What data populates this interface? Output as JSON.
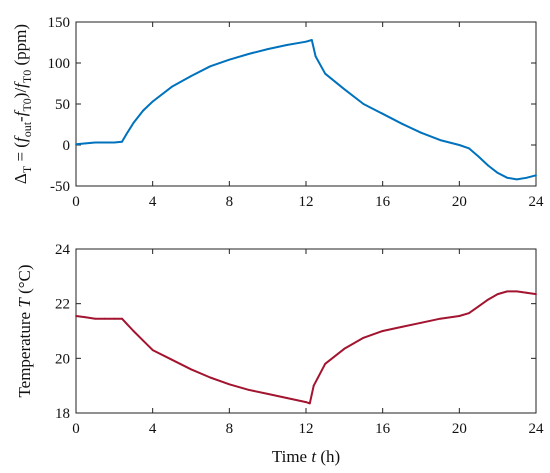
{
  "chart_data": [
    {
      "type": "line",
      "ylabel": {
        "base": "Δ",
        "base_sub": "T",
        "mid1": " = (",
        "f1": "f",
        "f1_sub": "out",
        "minus": "-",
        "f2": "f",
        "f2_sub": "T0",
        "close": ")/",
        "f3": "f",
        "f3_sub": "T0",
        "unit": " (ppm)"
      },
      "xlim": [
        0,
        24
      ],
      "ylim": [
        -50,
        150
      ],
      "x_ticks": [
        "0",
        "4",
        "8",
        "12",
        "16",
        "20",
        "24"
      ],
      "y_ticks": [
        "-50",
        "0",
        "50",
        "100",
        "150"
      ],
      "series": [
        {
          "color": "#0072BD",
          "x": [
            0,
            0.5,
            1.0,
            1.5,
            2.0,
            2.4,
            2.6,
            3.0,
            3.5,
            4.0,
            5.0,
            6.0,
            7.0,
            8.0,
            9.0,
            10.0,
            11.0,
            12.0,
            12.3,
            12.5,
            13.0,
            14.0,
            15.0,
            16.0,
            17.0,
            18.0,
            19.0,
            20.0,
            20.5,
            21.0,
            21.5,
            22.0,
            22.5,
            23.0,
            23.5,
            24.0
          ],
          "y": [
            1,
            2,
            3,
            3,
            3,
            4,
            12,
            27,
            42,
            53,
            71,
            84,
            96,
            104,
            111,
            117,
            122,
            126,
            128,
            108,
            87,
            68,
            50,
            38,
            26,
            15,
            6,
            0,
            -4,
            -14,
            -25,
            -34,
            -40,
            -42,
            -40,
            -37
          ]
        }
      ]
    },
    {
      "type": "line",
      "ylabel": {
        "text": "Temperature ",
        "var": "T",
        "unit": " (°C)"
      },
      "xlabel": {
        "text": "Time ",
        "var": "t",
        "unit": " (h)"
      },
      "xlim": [
        0,
        24
      ],
      "ylim": [
        18,
        24
      ],
      "x_ticks": [
        "0",
        "4",
        "8",
        "12",
        "16",
        "20",
        "24"
      ],
      "y_ticks": [
        "18",
        "20",
        "22",
        "24"
      ],
      "series": [
        {
          "color": "#A2142F",
          "x": [
            0,
            0.5,
            1.0,
            1.5,
            2.0,
            2.4,
            2.6,
            3.0,
            3.5,
            4.0,
            5.0,
            6.0,
            7.0,
            8.0,
            9.0,
            10.0,
            11.0,
            12.0,
            12.2,
            12.4,
            13.0,
            14.0,
            15.0,
            16.0,
            17.0,
            18.0,
            19.0,
            20.0,
            20.5,
            21.0,
            21.5,
            22.0,
            22.5,
            23.0,
            23.5,
            24.0
          ],
          "y": [
            21.55,
            21.5,
            21.45,
            21.45,
            21.45,
            21.45,
            21.3,
            21.0,
            20.65,
            20.3,
            19.95,
            19.6,
            19.3,
            19.05,
            18.85,
            18.7,
            18.55,
            18.4,
            18.35,
            19.0,
            19.8,
            20.35,
            20.75,
            21.0,
            21.15,
            21.3,
            21.45,
            21.55,
            21.65,
            21.9,
            22.15,
            22.35,
            22.45,
            22.45,
            22.4,
            22.35
          ]
        }
      ]
    }
  ]
}
